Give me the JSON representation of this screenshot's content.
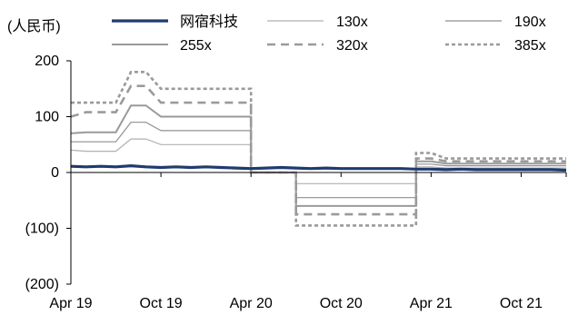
{
  "chart_data": {
    "type": "line",
    "ylabel": "(人民币)",
    "x_ticks": [
      "Apr 19",
      "Oct 19",
      "Apr 20",
      "Oct 20",
      "Apr 21",
      "Oct 21"
    ],
    "y_ticks": [
      "200",
      "100",
      "0",
      "(100)",
      "(200)"
    ],
    "ylim": [
      -200,
      200
    ],
    "x_range": [
      "2019-04",
      "2022-01"
    ],
    "grid": false,
    "legend_position": "top",
    "series": [
      {
        "name": "网宿科技",
        "color": "#1f3b70",
        "style": "solid-thick",
        "points": [
          [
            "2019-04",
            11
          ],
          [
            "2019-05",
            10
          ],
          [
            "2019-06",
            11
          ],
          [
            "2019-07",
            10
          ],
          [
            "2019-08",
            12
          ],
          [
            "2019-09",
            10
          ],
          [
            "2019-10",
            9
          ],
          [
            "2019-11",
            10
          ],
          [
            "2019-12",
            9
          ],
          [
            "2020-01",
            10
          ],
          [
            "2020-02",
            9
          ],
          [
            "2020-03",
            8
          ],
          [
            "2020-04",
            7
          ],
          [
            "2020-05",
            8
          ],
          [
            "2020-06",
            9
          ],
          [
            "2020-07",
            8
          ],
          [
            "2020-08",
            7
          ],
          [
            "2020-09",
            8
          ],
          [
            "2020-10",
            7
          ],
          [
            "2020-11",
            7
          ],
          [
            "2020-12",
            7
          ],
          [
            "2021-01",
            7
          ],
          [
            "2021-02",
            7
          ],
          [
            "2021-03",
            6
          ],
          [
            "2021-04",
            6
          ],
          [
            "2021-05",
            5
          ],
          [
            "2021-06",
            6
          ],
          [
            "2021-07",
            5
          ],
          [
            "2021-08",
            5
          ],
          [
            "2021-09",
            5
          ],
          [
            "2021-10",
            5
          ],
          [
            "2021-11",
            5
          ],
          [
            "2021-12",
            5
          ],
          [
            "2022-01",
            4
          ]
        ]
      },
      {
        "name": "130x",
        "color": "#b0b0b0",
        "style": "solid-thin",
        "points": [
          [
            "2019-04",
            40
          ],
          [
            "2019-05",
            38
          ],
          [
            "2019-06",
            38
          ],
          [
            "2019-07",
            38
          ],
          [
            "2019-08",
            60
          ],
          [
            "2019-09",
            60
          ],
          [
            "2019-10",
            50
          ],
          [
            "2019-11",
            50
          ],
          [
            "2020-04",
            50
          ],
          [
            "2020-04",
            0
          ],
          [
            "2020-07",
            0
          ],
          [
            "2020-07",
            -20
          ],
          [
            "2021-03",
            -20
          ],
          [
            "2021-03",
            10
          ],
          [
            "2021-04",
            10
          ],
          [
            "2021-05",
            8
          ],
          [
            "2021-08",
            8
          ],
          [
            "2021-10",
            8
          ],
          [
            "2022-01",
            8
          ]
        ]
      },
      {
        "name": "190x",
        "color": "#909090",
        "style": "solid-thin",
        "points": [
          [
            "2019-04",
            55
          ],
          [
            "2019-05",
            55
          ],
          [
            "2019-06",
            55
          ],
          [
            "2019-07",
            55
          ],
          [
            "2019-08",
            90
          ],
          [
            "2019-09",
            90
          ],
          [
            "2019-10",
            75
          ],
          [
            "2019-11",
            75
          ],
          [
            "2020-04",
            75
          ],
          [
            "2020-04",
            0
          ],
          [
            "2020-07",
            0
          ],
          [
            "2020-07",
            -45
          ],
          [
            "2021-03",
            -45
          ],
          [
            "2021-03",
            15
          ],
          [
            "2021-04",
            15
          ],
          [
            "2021-05",
            12
          ],
          [
            "2021-08",
            12
          ],
          [
            "2021-10",
            12
          ],
          [
            "2022-01",
            12
          ]
        ]
      },
      {
        "name": "255x",
        "color": "#9a9a9a",
        "style": "solid-medium",
        "points": [
          [
            "2019-04",
            70
          ],
          [
            "2019-05",
            72
          ],
          [
            "2019-06",
            72
          ],
          [
            "2019-07",
            72
          ],
          [
            "2019-08",
            120
          ],
          [
            "2019-09",
            120
          ],
          [
            "2019-10",
            100
          ],
          [
            "2019-11",
            100
          ],
          [
            "2020-04",
            100
          ],
          [
            "2020-04",
            0
          ],
          [
            "2020-07",
            0
          ],
          [
            "2020-07",
            -60
          ],
          [
            "2021-03",
            -60
          ],
          [
            "2021-03",
            20
          ],
          [
            "2021-04",
            20
          ],
          [
            "2021-05",
            16
          ],
          [
            "2021-08",
            16
          ],
          [
            "2021-10",
            16
          ],
          [
            "2022-01",
            16
          ]
        ]
      },
      {
        "name": "320x",
        "color": "#9a9a9a",
        "style": "dashed",
        "points": [
          [
            "2019-04",
            100
          ],
          [
            "2019-05",
            108
          ],
          [
            "2019-06",
            108
          ],
          [
            "2019-07",
            108
          ],
          [
            "2019-08",
            155
          ],
          [
            "2019-09",
            155
          ],
          [
            "2019-10",
            125
          ],
          [
            "2019-11",
            125
          ],
          [
            "2020-04",
            125
          ],
          [
            "2020-04",
            0
          ],
          [
            "2020-07",
            0
          ],
          [
            "2020-07",
            -75
          ],
          [
            "2021-03",
            -75
          ],
          [
            "2021-03",
            25
          ],
          [
            "2021-04",
            25
          ],
          [
            "2021-05",
            20
          ],
          [
            "2021-08",
            20
          ],
          [
            "2021-10",
            20
          ],
          [
            "2022-01",
            20
          ]
        ]
      },
      {
        "name": "385x",
        "color": "#9a9a9a",
        "style": "dotted",
        "points": [
          [
            "2019-04",
            125
          ],
          [
            "2019-05",
            125
          ],
          [
            "2019-06",
            125
          ],
          [
            "2019-07",
            125
          ],
          [
            "2019-08",
            180
          ],
          [
            "2019-09",
            180
          ],
          [
            "2019-10",
            150
          ],
          [
            "2019-11",
            150
          ],
          [
            "2020-04",
            150
          ],
          [
            "2020-04",
            0
          ],
          [
            "2020-07",
            0
          ],
          [
            "2020-07",
            -95
          ],
          [
            "2021-03",
            -95
          ],
          [
            "2021-03",
            35
          ],
          [
            "2021-04",
            35
          ],
          [
            "2021-05",
            25
          ],
          [
            "2021-08",
            25
          ],
          [
            "2021-10",
            25
          ],
          [
            "2022-01",
            25
          ]
        ]
      }
    ]
  }
}
